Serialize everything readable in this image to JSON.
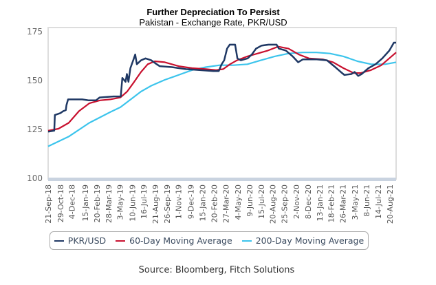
{
  "chart_data": {
    "type": "line",
    "title": "Further Depreciation To Persist",
    "subtitle": "Pakistan - Exchange Rate, PKR/USD",
    "xlabel": "",
    "ylabel": "",
    "ylim": [
      100,
      175
    ],
    "xlim": [
      "2018-09-21",
      "2021-09-08"
    ],
    "yticks": [
      "175",
      "150",
      "125",
      "100"
    ],
    "xticks": [
      "21-Sep-18",
      "29-Oct-18",
      "4-Dec-18",
      "15-Jan-19",
      "20-Feb-19",
      "28-Mar-19",
      "3-May-19",
      "10-Jun-19",
      "16-Jul-19",
      "21-Aug-19",
      "26-Sep-19",
      "1-Nov-19",
      "9-Dec-19",
      "15-Jan-20",
      "20-Feb-20",
      "27-Mar-20",
      "4-May-20",
      "9-Jun-20",
      "15-Jul-20",
      "20-Aug-20",
      "25-Sep-20",
      "2-Nov-20",
      "8-Dec-20",
      "13-Jan-21",
      "18-Feb-21",
      "26-Mar-21",
      "3-May-21",
      "8-Jun-21",
      "14-Jul-21",
      "20-Aug-21"
    ],
    "grid": false,
    "legend_position": "bottom",
    "series": [
      {
        "name": "PKR/USD",
        "color": "#1f3864",
        "points": [
          [
            "2018-09-21",
            123.5
          ],
          [
            "2018-10-10",
            124
          ],
          [
            "2018-10-12",
            132
          ],
          [
            "2018-10-29",
            133
          ],
          [
            "2018-11-07",
            134
          ],
          [
            "2018-11-15",
            134.5
          ],
          [
            "2018-11-17",
            137
          ],
          [
            "2018-11-22",
            140
          ],
          [
            "2019-01-05",
            140
          ],
          [
            "2019-01-26",
            139.5
          ],
          [
            "2019-02-17",
            139.5
          ],
          [
            "2019-02-28",
            141
          ],
          [
            "2019-04-12",
            141.5
          ],
          [
            "2019-05-05",
            141.5
          ],
          [
            "2019-05-10",
            151
          ],
          [
            "2019-05-20",
            149
          ],
          [
            "2019-05-24",
            153
          ],
          [
            "2019-05-29",
            149
          ],
          [
            "2019-06-04",
            156
          ],
          [
            "2019-06-15",
            161
          ],
          [
            "2019-06-19",
            163
          ],
          [
            "2019-06-24",
            158
          ],
          [
            "2019-07-07",
            160
          ],
          [
            "2019-07-21",
            161
          ],
          [
            "2019-08-08",
            160
          ],
          [
            "2019-08-25",
            158
          ],
          [
            "2019-09-03",
            157
          ],
          [
            "2019-10-11",
            156.5
          ],
          [
            "2019-11-23",
            155.5
          ],
          [
            "2020-01-05",
            155
          ],
          [
            "2020-02-17",
            154.5
          ],
          [
            "2020-03-05",
            154.5
          ],
          [
            "2020-03-14",
            158
          ],
          [
            "2020-03-22",
            160
          ],
          [
            "2020-03-31",
            166
          ],
          [
            "2020-04-08",
            168
          ],
          [
            "2020-04-25",
            168
          ],
          [
            "2020-05-02",
            161
          ],
          [
            "2020-05-13",
            160
          ],
          [
            "2020-06-03",
            161
          ],
          [
            "2020-06-16",
            163
          ],
          [
            "2020-06-29",
            166
          ],
          [
            "2020-07-16",
            167.5
          ],
          [
            "2020-08-07",
            168
          ],
          [
            "2020-09-01",
            168
          ],
          [
            "2020-09-08",
            166
          ],
          [
            "2020-09-30",
            165
          ],
          [
            "2020-10-21",
            162
          ],
          [
            "2020-11-07",
            159
          ],
          [
            "2020-11-22",
            160.5
          ],
          [
            "2021-01-04",
            160.5
          ],
          [
            "2021-02-05",
            160
          ],
          [
            "2021-02-27",
            157
          ],
          [
            "2021-03-20",
            154
          ],
          [
            "2021-03-31",
            152.5
          ],
          [
            "2021-04-22",
            153
          ],
          [
            "2021-05-02",
            154
          ],
          [
            "2021-05-13",
            152
          ],
          [
            "2021-05-24",
            153
          ],
          [
            "2021-06-14",
            156
          ],
          [
            "2021-07-06",
            158
          ],
          [
            "2021-07-27",
            161
          ],
          [
            "2021-08-18",
            165
          ],
          [
            "2021-09-01",
            169
          ],
          [
            "2021-09-08",
            169
          ]
        ]
      },
      {
        "name": "60-Day Moving Average",
        "color": "#c8102e",
        "points": [
          [
            "2018-09-21",
            124
          ],
          [
            "2018-10-23",
            125
          ],
          [
            "2018-11-24",
            128
          ],
          [
            "2018-12-26",
            134
          ],
          [
            "2019-01-27",
            138
          ],
          [
            "2019-03-01",
            139.5
          ],
          [
            "2019-04-02",
            140
          ],
          [
            "2019-05-04",
            141
          ],
          [
            "2019-05-25",
            144
          ],
          [
            "2019-06-16",
            149
          ],
          [
            "2019-07-07",
            154
          ],
          [
            "2019-07-28",
            158
          ],
          [
            "2019-08-19",
            159.5
          ],
          [
            "2019-09-19",
            159
          ],
          [
            "2019-11-01",
            157
          ],
          [
            "2019-12-13",
            156
          ],
          [
            "2020-01-25",
            155.5
          ],
          [
            "2020-02-26",
            155
          ],
          [
            "2020-03-19",
            155.5
          ],
          [
            "2020-04-09",
            158
          ],
          [
            "2020-05-01",
            160
          ],
          [
            "2020-06-02",
            162
          ],
          [
            "2020-07-04",
            163.5
          ],
          [
            "2020-08-05",
            165
          ],
          [
            "2020-09-06",
            167
          ],
          [
            "2020-10-08",
            166
          ],
          [
            "2020-11-09",
            163
          ],
          [
            "2020-12-11",
            161
          ],
          [
            "2021-01-23",
            160.5
          ],
          [
            "2021-02-24",
            159
          ],
          [
            "2021-03-28",
            156
          ],
          [
            "2021-04-29",
            153.5
          ],
          [
            "2021-05-21",
            153.5
          ],
          [
            "2021-06-22",
            155
          ],
          [
            "2021-07-24",
            157.5
          ],
          [
            "2021-09-08",
            164
          ]
        ]
      },
      {
        "name": "200-Day Moving Average",
        "color": "#3cc4ec",
        "points": [
          [
            "2018-09-21",
            116
          ],
          [
            "2018-11-24",
            121
          ],
          [
            "2019-01-27",
            128
          ],
          [
            "2019-04-02",
            133.5
          ],
          [
            "2019-05-04",
            136
          ],
          [
            "2019-06-05",
            140
          ],
          [
            "2019-07-07",
            144
          ],
          [
            "2019-08-08",
            147
          ],
          [
            "2019-09-19",
            150
          ],
          [
            "2019-11-01",
            152.5
          ],
          [
            "2019-12-13",
            155
          ],
          [
            "2020-01-25",
            156.5
          ],
          [
            "2020-03-08",
            157.5
          ],
          [
            "2020-04-20",
            157.5
          ],
          [
            "2020-06-02",
            158
          ],
          [
            "2020-07-14",
            160
          ],
          [
            "2020-08-26",
            162
          ],
          [
            "2020-10-08",
            163.5
          ],
          [
            "2020-11-21",
            164
          ],
          [
            "2021-01-03",
            164
          ],
          [
            "2021-02-14",
            163.5
          ],
          [
            "2021-03-28",
            162
          ],
          [
            "2021-05-11",
            159.5
          ],
          [
            "2021-06-22",
            158
          ],
          [
            "2021-08-05",
            158
          ],
          [
            "2021-09-08",
            159
          ]
        ]
      }
    ],
    "source": "Source: Bloomberg, Fitch Solutions"
  }
}
